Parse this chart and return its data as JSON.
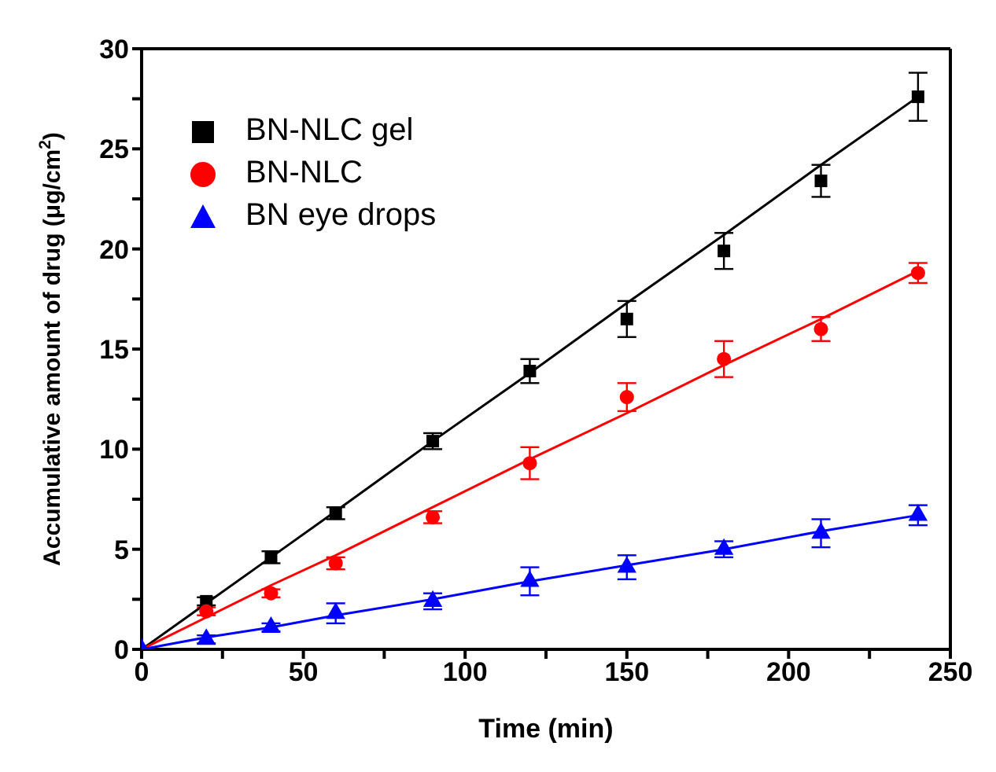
{
  "chart_data": {
    "type": "scatter",
    "xlabel": "Time (min)",
    "ylabel": "Accumulative amount of drug (μg/cm$^{2}$)",
    "x": [
      0,
      20,
      40,
      60,
      90,
      120,
      150,
      180,
      210,
      240
    ],
    "xlim": [
      0,
      250
    ],
    "xticks": [
      0,
      {
        "value": 25,
        "label": null
      },
      50,
      {
        "value": 75,
        "label": null
      },
      100,
      {
        "value": 125,
        "label": null
      },
      150,
      {
        "value": 175,
        "label": null
      },
      200,
      {
        "value": 225,
        "label": null
      },
      250
    ],
    "ylim": [
      0,
      30
    ],
    "yticks": [
      0,
      {
        "value": 2.5,
        "label": null
      },
      5,
      {
        "value": 7.5,
        "label": null
      },
      10,
      {
        "value": 12.5,
        "label": null
      },
      15,
      {
        "value": 17.5,
        "label": null
      },
      20,
      {
        "value": 22.5,
        "label": null
      },
      25,
      {
        "value": 27.5,
        "label": null
      },
      30
    ],
    "legend": "top left",
    "series": [
      {
        "name": "BN-NLC gel",
        "marker": "square",
        "color": "#000000",
        "values": [
          null,
          2.4,
          4.6,
          6.8,
          10.4,
          13.9,
          16.5,
          19.9,
          23.4,
          27.6
        ],
        "errors": [
          null,
          0.2,
          0.3,
          0.3,
          0.4,
          0.6,
          0.9,
          0.9,
          0.8,
          1.2
        ]
      },
      {
        "name": "BN-NLC",
        "marker": "circle",
        "color": "#ff0000",
        "values": [
          null,
          1.9,
          2.8,
          4.3,
          6.6,
          9.3,
          12.6,
          14.5,
          16.0,
          18.8
        ],
        "errors": [
          null,
          0.2,
          0.2,
          0.3,
          0.3,
          0.8,
          0.7,
          0.9,
          0.6,
          0.5
        ]
      },
      {
        "name": "BN eye drops",
        "marker": "triangle",
        "color": "#0000ff",
        "values": [
          0,
          0.5,
          1.1,
          1.8,
          2.4,
          3.4,
          4.1,
          5.0,
          5.8,
          6.7
        ],
        "errors": [
          0,
          0.2,
          0.2,
          0.5,
          0.4,
          0.7,
          0.6,
          0.4,
          0.7,
          0.5
        ]
      },
      {
        "type": "line",
        "marker": "none",
        "color": "#000000",
        "values": [
          0,
          2.3,
          4.6,
          6.9,
          10.4,
          13.8,
          17.3,
          20.7,
          24.2,
          27.6
        ]
      },
      {
        "type": "line",
        "marker": "none",
        "color": "#ff0000",
        "values": [
          0,
          1.6,
          3.2,
          4.7,
          7.1,
          9.5,
          11.8,
          14.2,
          16.5,
          18.9
        ]
      },
      {
        "type": "line",
        "marker": "none",
        "color": "#0000ff",
        "values": [
          0,
          0.6,
          1.1,
          1.7,
          2.5,
          3.4,
          4.2,
          5.0,
          5.9,
          6.7
        ]
      }
    ]
  }
}
